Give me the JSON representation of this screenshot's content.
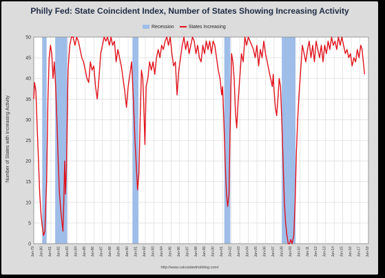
{
  "chart_data": {
    "type": "line",
    "title": "Philly Fed: State Coincident Index, Number of States Showing Increasing Activity",
    "ylabel": "Number of States with Increasing Activity",
    "xlabel": "",
    "source": "http://www.calculatedriskblog.com/",
    "ylim": [
      0,
      50
    ],
    "yticks": [
      0,
      5,
      10,
      15,
      20,
      25,
      30,
      35,
      40,
      45,
      50
    ],
    "xlim": [
      1979.0,
      2018.0
    ],
    "xtick_labels": [
      "Jan-79",
      "Jan-80",
      "Jan-81",
      "Jan-82",
      "Jan-83",
      "Jan-84",
      "Jan-85",
      "Jan-86",
      "Jan-87",
      "Jan-88",
      "Jan-89",
      "Jan-90",
      "Jan-91",
      "Jan-92",
      "Jan-93",
      "Jan-94",
      "Jan-95",
      "Jan-96",
      "Jan-97",
      "Jan-98",
      "Jan-99",
      "Jan-00",
      "Jan-01",
      "Jan-02",
      "Jan-03",
      "Jan-04",
      "Jan-05",
      "Jan-06",
      "Jan-07",
      "Jan-08",
      "Jan-09",
      "Jan-10",
      "Jan-11",
      "Jan-12",
      "Jan-13",
      "Jan-14",
      "Jan-15",
      "Jan-16",
      "Jan-17",
      "Jan-18"
    ],
    "grid": true,
    "legend_placement": "top-center",
    "legend": {
      "recession_label": "Recession",
      "series_label": "States Increasing"
    },
    "colors": {
      "series": "#e0101a",
      "recession": "#9ebde8",
      "plot_bg": "#ffffff",
      "grid": "#d4d4d4"
    },
    "recessions": [
      [
        1980.0,
        1980.5
      ],
      [
        1981.5,
        1982.9
      ],
      [
        1990.5,
        1991.2
      ],
      [
        2001.2,
        2001.9
      ],
      [
        2007.9,
        2009.5
      ]
    ],
    "series": [
      {
        "name": "States Increasing",
        "points": [
          [
            1979.0,
            35
          ],
          [
            1979.1,
            39
          ],
          [
            1979.25,
            37
          ],
          [
            1979.4,
            28
          ],
          [
            1979.55,
            20
          ],
          [
            1979.7,
            12
          ],
          [
            1979.85,
            7
          ],
          [
            1980.0,
            4
          ],
          [
            1980.15,
            2
          ],
          [
            1980.3,
            3
          ],
          [
            1980.5,
            15
          ],
          [
            1980.65,
            35
          ],
          [
            1980.8,
            45
          ],
          [
            1980.95,
            48
          ],
          [
            1981.1,
            46
          ],
          [
            1981.25,
            40
          ],
          [
            1981.4,
            44
          ],
          [
            1981.55,
            38
          ],
          [
            1981.7,
            30
          ],
          [
            1981.85,
            20
          ],
          [
            1982.0,
            12
          ],
          [
            1982.15,
            8
          ],
          [
            1982.3,
            5
          ],
          [
            1982.4,
            3
          ],
          [
            1982.5,
            10
          ],
          [
            1982.6,
            20
          ],
          [
            1982.7,
            12
          ],
          [
            1982.8,
            18
          ],
          [
            1982.9,
            30
          ],
          [
            1983.0,
            42
          ],
          [
            1983.2,
            48
          ],
          [
            1983.4,
            50
          ],
          [
            1983.6,
            50
          ],
          [
            1983.8,
            48
          ],
          [
            1984.0,
            50
          ],
          [
            1984.2,
            49
          ],
          [
            1984.4,
            47
          ],
          [
            1984.6,
            45
          ],
          [
            1984.8,
            44
          ],
          [
            1985.0,
            42
          ],
          [
            1985.2,
            40
          ],
          [
            1985.4,
            39
          ],
          [
            1985.6,
            44
          ],
          [
            1985.8,
            42
          ],
          [
            1986.0,
            43
          ],
          [
            1986.2,
            38
          ],
          [
            1986.4,
            35
          ],
          [
            1986.6,
            40
          ],
          [
            1986.8,
            46
          ],
          [
            1987.0,
            48
          ],
          [
            1987.2,
            50
          ],
          [
            1987.4,
            49
          ],
          [
            1987.6,
            50
          ],
          [
            1987.8,
            48
          ],
          [
            1988.0,
            50
          ],
          [
            1988.2,
            48
          ],
          [
            1988.4,
            49
          ],
          [
            1988.6,
            44
          ],
          [
            1988.8,
            47
          ],
          [
            1989.0,
            45
          ],
          [
            1989.2,
            43
          ],
          [
            1989.4,
            40
          ],
          [
            1989.6,
            37
          ],
          [
            1989.8,
            33
          ],
          [
            1990.0,
            38
          ],
          [
            1990.2,
            41
          ],
          [
            1990.4,
            44
          ],
          [
            1990.6,
            35
          ],
          [
            1990.8,
            25
          ],
          [
            1991.0,
            17
          ],
          [
            1991.1,
            13
          ],
          [
            1991.25,
            17
          ],
          [
            1991.4,
            30
          ],
          [
            1991.55,
            42
          ],
          [
            1991.7,
            40
          ],
          [
            1991.8,
            35
          ],
          [
            1991.95,
            24
          ],
          [
            1992.1,
            38
          ],
          [
            1992.3,
            40
          ],
          [
            1992.5,
            44
          ],
          [
            1992.7,
            42
          ],
          [
            1992.9,
            44
          ],
          [
            1993.1,
            41
          ],
          [
            1993.3,
            45
          ],
          [
            1993.5,
            47
          ],
          [
            1993.7,
            45
          ],
          [
            1993.9,
            48
          ],
          [
            1994.1,
            47
          ],
          [
            1994.3,
            49
          ],
          [
            1994.5,
            50
          ],
          [
            1994.7,
            48
          ],
          [
            1994.9,
            50
          ],
          [
            1995.1,
            46
          ],
          [
            1995.3,
            43
          ],
          [
            1995.5,
            44
          ],
          [
            1995.7,
            36
          ],
          [
            1995.9,
            42
          ],
          [
            1996.1,
            45
          ],
          [
            1996.3,
            48
          ],
          [
            1996.5,
            50
          ],
          [
            1996.7,
            47
          ],
          [
            1996.9,
            49
          ],
          [
            1997.1,
            46
          ],
          [
            1997.3,
            48
          ],
          [
            1997.5,
            50
          ],
          [
            1997.7,
            49
          ],
          [
            1997.9,
            46
          ],
          [
            1998.1,
            48
          ],
          [
            1998.3,
            45
          ],
          [
            1998.5,
            44
          ],
          [
            1998.7,
            48
          ],
          [
            1998.9,
            46
          ],
          [
            1999.1,
            49
          ],
          [
            1999.3,
            47
          ],
          [
            1999.5,
            49
          ],
          [
            1999.7,
            46
          ],
          [
            1999.9,
            49
          ],
          [
            2000.1,
            48
          ],
          [
            2000.3,
            45
          ],
          [
            2000.5,
            42
          ],
          [
            2000.7,
            40
          ],
          [
            2000.9,
            36
          ],
          [
            2001.0,
            38
          ],
          [
            2001.15,
            30
          ],
          [
            2001.3,
            20
          ],
          [
            2001.45,
            12
          ],
          [
            2001.6,
            9
          ],
          [
            2001.75,
            12
          ],
          [
            2001.9,
            30
          ],
          [
            2002.05,
            46
          ],
          [
            2002.2,
            44
          ],
          [
            2002.35,
            40
          ],
          [
            2002.5,
            32
          ],
          [
            2002.65,
            28
          ],
          [
            2002.8,
            34
          ],
          [
            2003.0,
            40
          ],
          [
            2003.2,
            46
          ],
          [
            2003.4,
            44
          ],
          [
            2003.6,
            50
          ],
          [
            2003.8,
            48
          ],
          [
            2004.0,
            50
          ],
          [
            2004.2,
            49
          ],
          [
            2004.4,
            48
          ],
          [
            2004.6,
            47
          ],
          [
            2004.8,
            45
          ],
          [
            2005.0,
            48
          ],
          [
            2005.2,
            43
          ],
          [
            2005.4,
            47
          ],
          [
            2005.6,
            45
          ],
          [
            2005.8,
            49
          ],
          [
            2006.0,
            46
          ],
          [
            2006.2,
            44
          ],
          [
            2006.4,
            42
          ],
          [
            2006.6,
            40
          ],
          [
            2006.8,
            38
          ],
          [
            2006.9,
            41
          ],
          [
            2007.0,
            37
          ],
          [
            2007.15,
            33
          ],
          [
            2007.3,
            31
          ],
          [
            2007.45,
            35
          ],
          [
            2007.6,
            40
          ],
          [
            2007.75,
            38
          ],
          [
            2007.9,
            30
          ],
          [
            2008.05,
            20
          ],
          [
            2008.2,
            10
          ],
          [
            2008.35,
            5
          ],
          [
            2008.5,
            2
          ],
          [
            2008.65,
            0
          ],
          [
            2008.8,
            0
          ],
          [
            2008.95,
            1
          ],
          [
            2009.1,
            0
          ],
          [
            2009.3,
            2
          ],
          [
            2009.45,
            10
          ],
          [
            2009.6,
            22
          ],
          [
            2009.75,
            30
          ],
          [
            2009.9,
            36
          ],
          [
            2010.1,
            42
          ],
          [
            2010.3,
            48
          ],
          [
            2010.5,
            46
          ],
          [
            2010.7,
            44
          ],
          [
            2010.9,
            47
          ],
          [
            2011.1,
            49
          ],
          [
            2011.3,
            45
          ],
          [
            2011.5,
            48
          ],
          [
            2011.7,
            44
          ],
          [
            2011.9,
            49
          ],
          [
            2012.1,
            47
          ],
          [
            2012.3,
            45
          ],
          [
            2012.5,
            48
          ],
          [
            2012.7,
            44
          ],
          [
            2012.9,
            48
          ],
          [
            2013.1,
            46
          ],
          [
            2013.3,
            49
          ],
          [
            2013.5,
            47
          ],
          [
            2013.7,
            50
          ],
          [
            2013.9,
            48
          ],
          [
            2014.1,
            49
          ],
          [
            2014.3,
            47
          ],
          [
            2014.5,
            50
          ],
          [
            2014.7,
            48
          ],
          [
            2014.9,
            50
          ],
          [
            2015.1,
            48
          ],
          [
            2015.3,
            46
          ],
          [
            2015.5,
            47
          ],
          [
            2015.7,
            45
          ],
          [
            2015.9,
            46
          ],
          [
            2016.1,
            43
          ],
          [
            2016.3,
            45
          ],
          [
            2016.5,
            44
          ],
          [
            2016.7,
            47
          ],
          [
            2016.9,
            45
          ],
          [
            2017.1,
            48
          ],
          [
            2017.25,
            47
          ],
          [
            2017.4,
            44
          ],
          [
            2017.55,
            41
          ]
        ]
      }
    ]
  }
}
